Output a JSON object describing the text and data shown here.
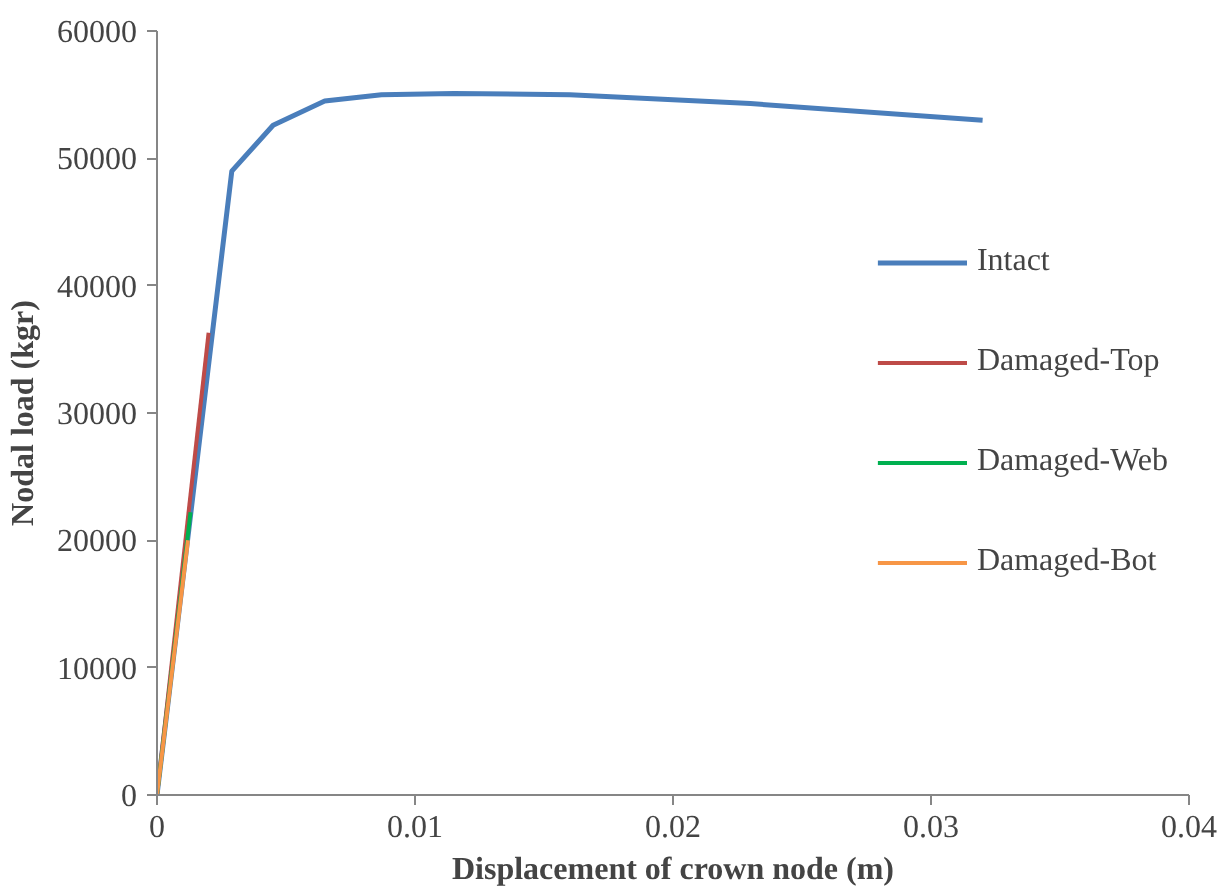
{
  "chart_data": {
    "type": "line",
    "xlabel": "Displacement of crown node (m)",
    "ylabel": "Nodal load (kgr)",
    "xlim": [
      0,
      0.04
    ],
    "ylim": [
      0,
      60000
    ],
    "xticks": [
      0,
      0.01,
      0.02,
      0.03,
      0.04
    ],
    "yticks": [
      0,
      10000,
      20000,
      30000,
      40000,
      50000,
      60000
    ],
    "grid": false,
    "legend": "right",
    "marker": "none",
    "line_style": "solid",
    "series": [
      {
        "name": "Intact",
        "color": "#4a7ebb",
        "x": [
          0,
          0.0029,
          0.0045,
          0.0065,
          0.0087,
          0.0115,
          0.016,
          0.023,
          0.032
        ],
        "values": [
          0,
          49000,
          52600,
          54500,
          55000,
          55100,
          55000,
          54300,
          53000
        ]
      },
      {
        "name": "Damaged-Top",
        "color": "#be4b48",
        "x": [
          0,
          0.002
        ],
        "values": [
          0,
          36300
        ]
      },
      {
        "name": "Damaged-Web",
        "color": "#00b050",
        "x": [
          0,
          0.0013
        ],
        "values": [
          0,
          22200
        ]
      },
      {
        "name": "Damaged-Bot",
        "color": "#f79646",
        "x": [
          0,
          0.0012
        ],
        "values": [
          0,
          20000
        ]
      }
    ]
  }
}
